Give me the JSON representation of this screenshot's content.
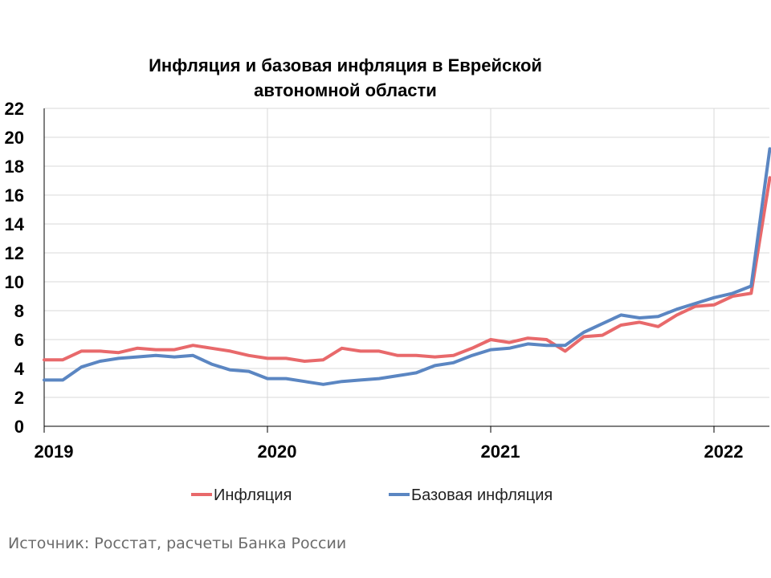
{
  "chart_data": {
    "type": "line",
    "title_lines": [
      "Инфляция и базовая инфляция в Еврейской",
      "автономной области"
    ],
    "xlabel": "",
    "ylabel": "",
    "ylim": [
      0,
      22
    ],
    "y_ticks": [
      0,
      2,
      4,
      6,
      8,
      10,
      12,
      14,
      16,
      18,
      20,
      22
    ],
    "x_ticks": [
      "2019",
      "2020",
      "2021",
      "2022"
    ],
    "x_start": "2019-01",
    "grid": true,
    "legend_position": "bottom",
    "series": [
      {
        "name": "Инфляция",
        "color": "#e8696b",
        "values": [
          4.6,
          4.6,
          5.2,
          5.2,
          5.1,
          5.4,
          5.3,
          5.3,
          5.6,
          5.4,
          5.2,
          4.9,
          4.7,
          4.7,
          4.5,
          4.6,
          5.4,
          5.2,
          5.2,
          4.9,
          4.9,
          4.8,
          4.9,
          5.4,
          6.0,
          5.8,
          6.1,
          6.0,
          5.2,
          6.2,
          6.3,
          7.0,
          7.2,
          6.9,
          7.7,
          8.3,
          8.4,
          9.0,
          9.2,
          17.2
        ]
      },
      {
        "name": "Базовая инфляция",
        "color": "#5b86c2",
        "values": [
          3.2,
          3.2,
          4.1,
          4.5,
          4.7,
          4.8,
          4.9,
          4.8,
          4.9,
          4.3,
          3.9,
          3.8,
          3.3,
          3.3,
          3.1,
          2.9,
          3.1,
          3.2,
          3.3,
          3.5,
          3.7,
          4.2,
          4.4,
          4.9,
          5.3,
          5.4,
          5.7,
          5.6,
          5.6,
          6.5,
          7.1,
          7.7,
          7.5,
          7.6,
          8.1,
          8.5,
          8.9,
          9.2,
          9.7,
          19.2
        ]
      }
    ]
  },
  "source_text": "Источник: Росстат, расчеты Банка России"
}
